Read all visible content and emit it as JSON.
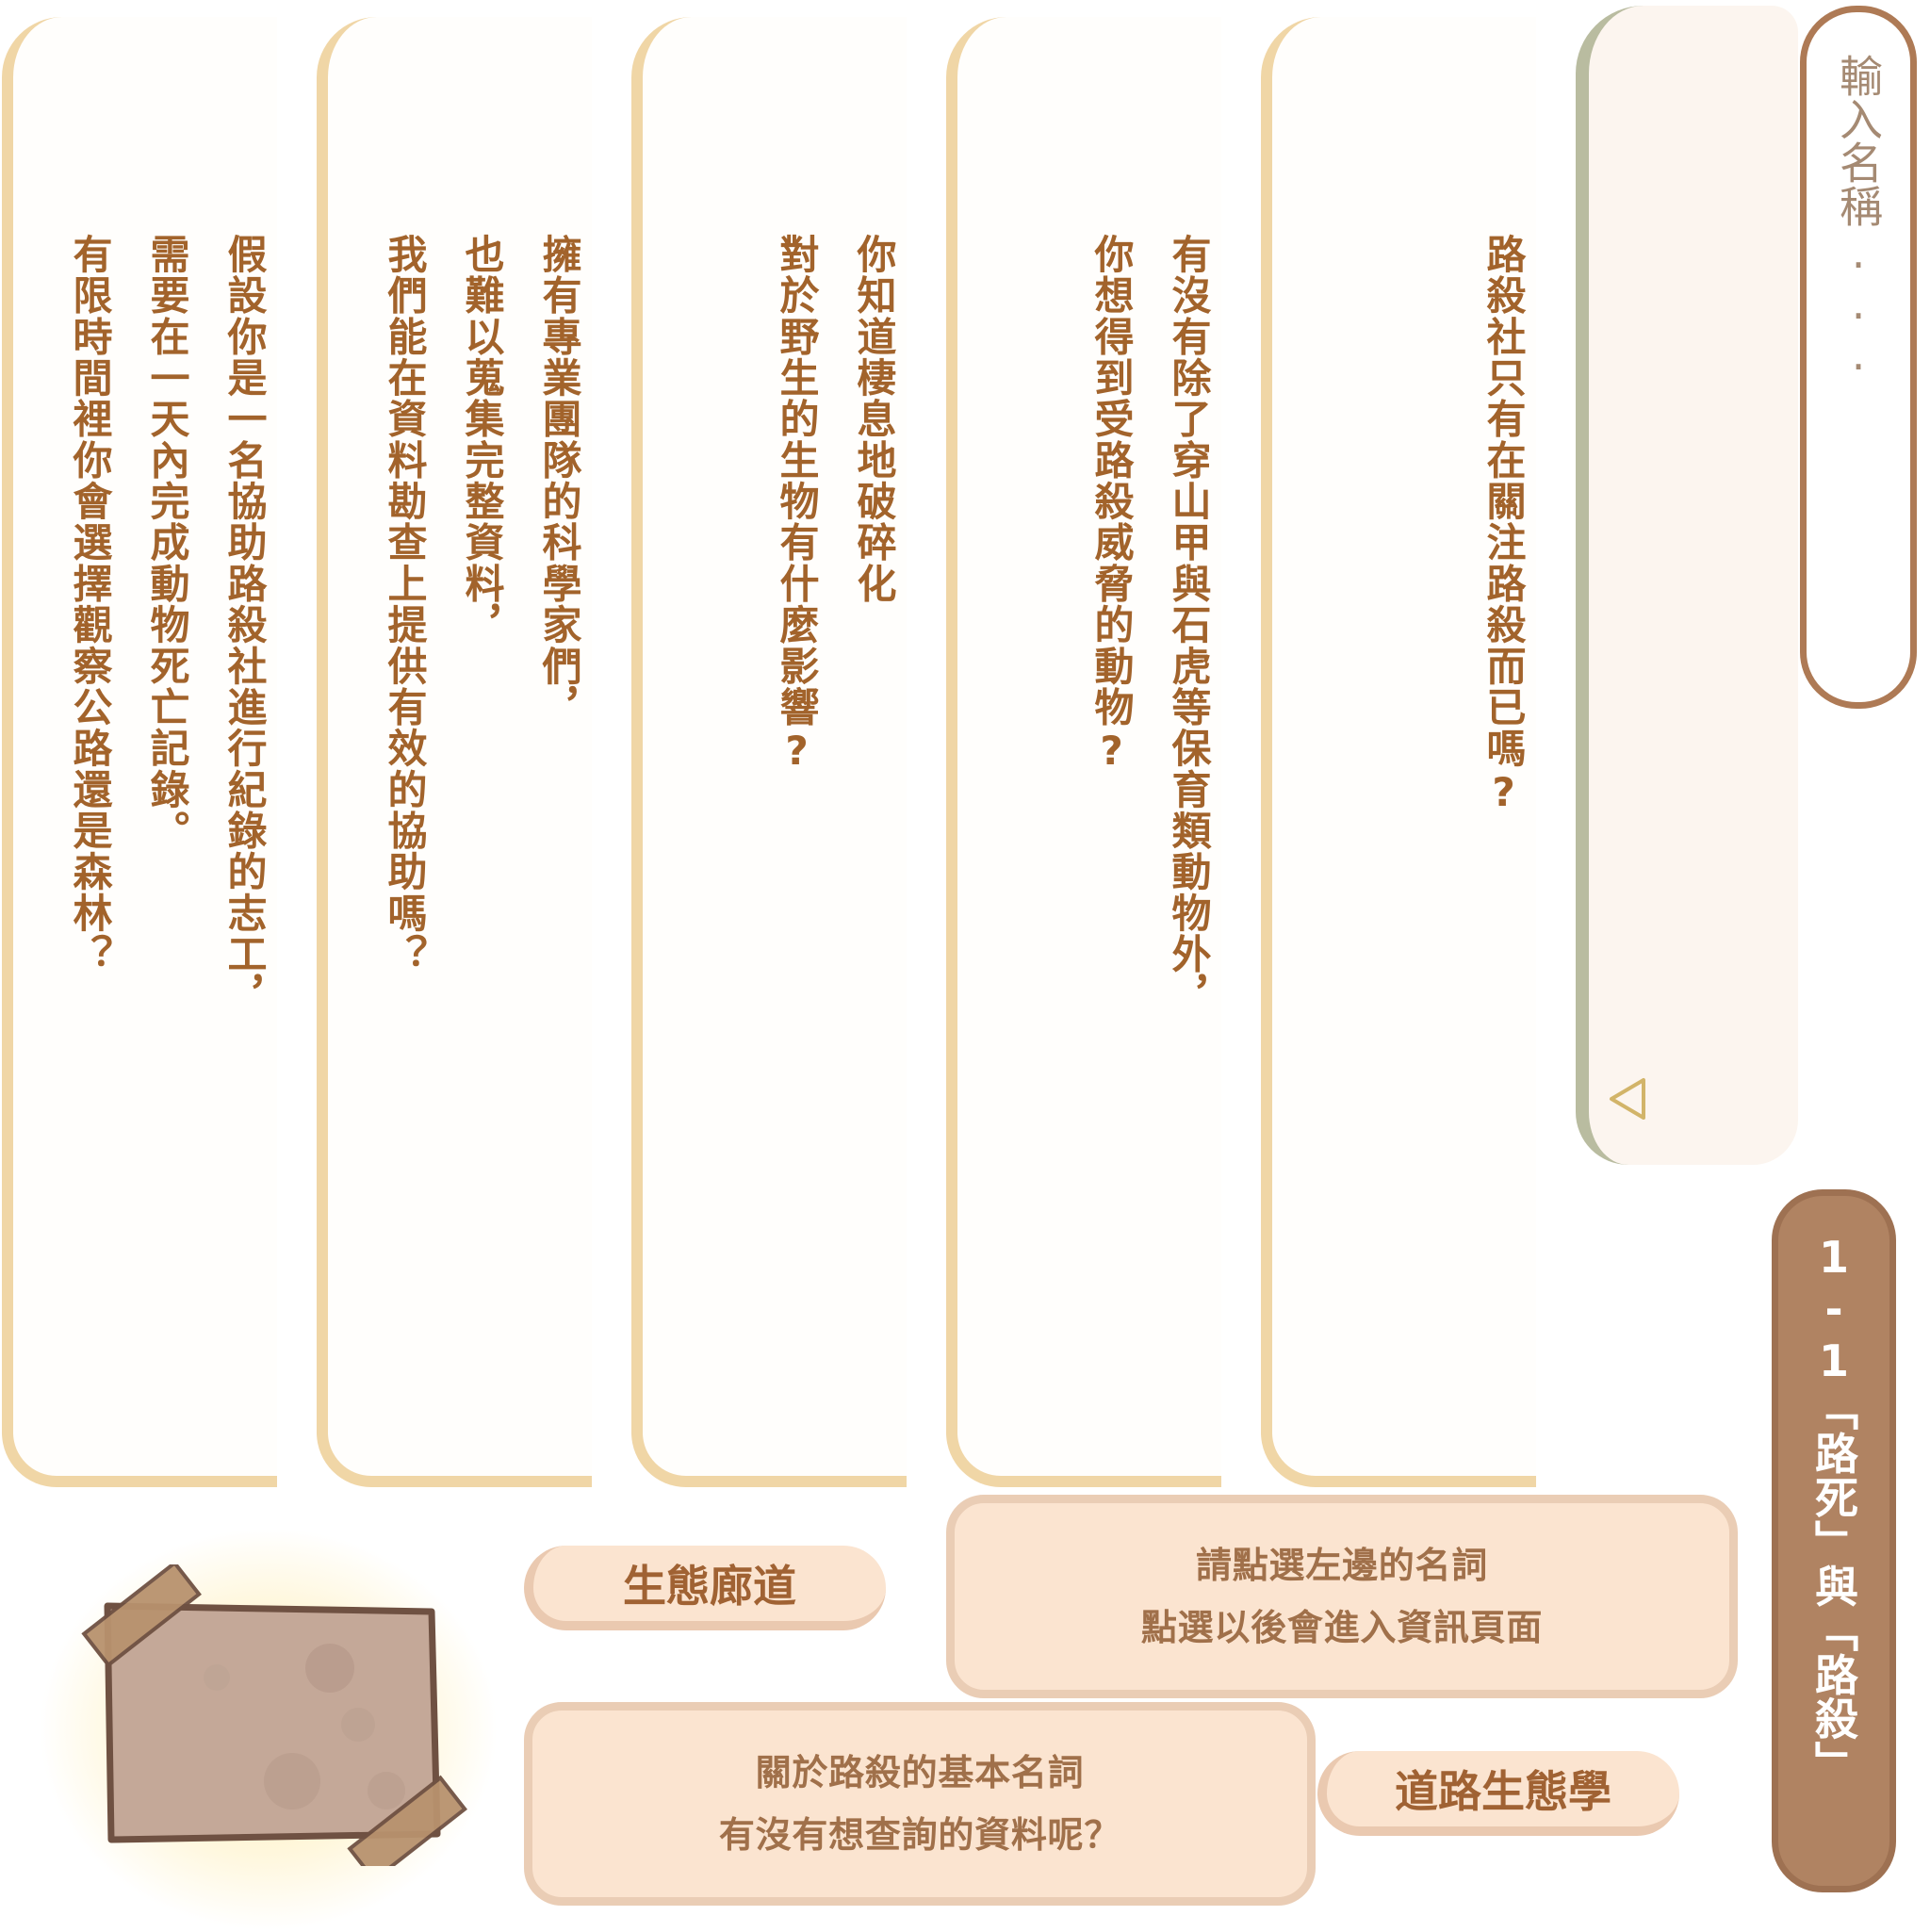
{
  "search": {
    "placeholder": "輸入名稱..."
  },
  "section": {
    "label": "1-1「路死」與「路殺」"
  },
  "questions": [
    {
      "lines": [
        "路殺社只有在關注路殺而已嗎?"
      ]
    },
    {
      "lines": [
        "有沒有除了穿山甲與石虎等保育類動物外，",
        "你想得到受路殺威脅的動物?"
      ]
    },
    {
      "lines": [
        "你知道棲息地破碎化",
        "對於野生的生物有什麼影響?"
      ]
    },
    {
      "lines": [
        "擁有專業團隊的科學家們，",
        "也難以蒐集完整資料，",
        "我們能在資料勘查上提供有效的協助嗎？"
      ]
    },
    {
      "lines": [
        "假設你是一名協助路殺社進行紀錄的志工，",
        "需要在一天內完成動物死亡記錄。",
        "有限時間裡你會選擇觀察公路還是森林？"
      ]
    }
  ],
  "terms": {
    "term1": "生態廊道",
    "term2": "道路生態學"
  },
  "hints": {
    "select_line1": "請點選左邊的名詞",
    "select_line2": "點選以後會進入資訊頁面",
    "about_line1": "關於路殺的基本名詞",
    "about_line2": "有沒有想查詢的資料呢？"
  },
  "colors": {
    "card_border": "#f0d6a6",
    "question_text": "#a2632b",
    "tab_fill": "#b08362",
    "panel_border": "#b9bca0",
    "pill_fill": "#fbe4d0"
  },
  "icons": {
    "dropdown": "triangle-down-outline-icon",
    "note": "taped-note-icon"
  }
}
